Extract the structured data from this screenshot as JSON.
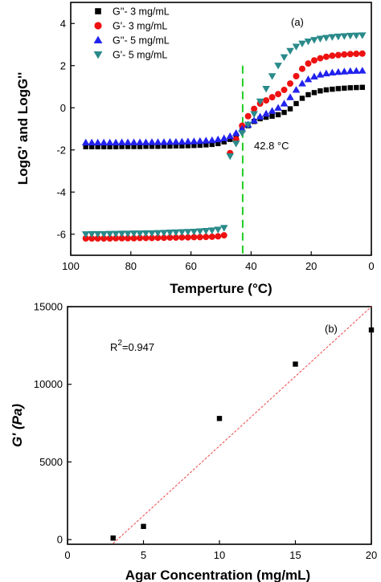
{
  "chart_data": [
    {
      "type": "scatter",
      "panel_label": "(a)",
      "xlabel": "Temperture (°C)",
      "ylabel": "LogG' and LogG''",
      "xlim": [
        100,
        0
      ],
      "ylim": [
        -7,
        5
      ],
      "xticks": [
        100,
        80,
        60,
        40,
        20,
        0
      ],
      "yticks": [
        -6,
        -4,
        -2,
        0,
        2,
        4
      ],
      "grid": false,
      "legend": "top-left",
      "annotation": {
        "text": "42.8 °C",
        "vline_x": 42.8,
        "vline_color": "#22cc22"
      },
      "series": [
        {
          "name": "G''- 3 mg/mL",
          "marker": "square",
          "color": "#000000",
          "x": [
            95,
            93,
            91,
            89,
            87,
            85,
            83,
            81,
            79,
            77,
            75,
            73,
            71,
            69,
            67,
            65,
            63,
            61,
            59,
            57,
            55,
            53,
            51,
            49,
            47,
            45,
            43,
            41,
            39,
            37,
            35,
            33,
            31,
            29,
            27,
            25,
            23,
            21,
            19,
            17,
            15,
            13,
            11,
            9,
            7,
            5,
            3
          ],
          "y": [
            -1.85,
            -1.85,
            -1.85,
            -1.85,
            -1.85,
            -1.85,
            -1.84,
            -1.84,
            -1.84,
            -1.84,
            -1.83,
            -1.83,
            -1.83,
            -1.82,
            -1.82,
            -1.81,
            -1.81,
            -1.8,
            -1.79,
            -1.78,
            -1.76,
            -1.74,
            -1.7,
            -1.62,
            -1.5,
            -1.32,
            -1.08,
            -0.85,
            -0.65,
            -0.52,
            -0.45,
            -0.4,
            -0.33,
            -0.22,
            -0.05,
            0.2,
            0.45,
            0.62,
            0.72,
            0.8,
            0.85,
            0.88,
            0.91,
            0.93,
            0.95,
            0.96,
            0.97
          ]
        },
        {
          "name": "G'- 3 mg/mL",
          "marker": "circle",
          "color": "#ee1111",
          "x": [
            95,
            93,
            91,
            89,
            87,
            85,
            83,
            81,
            79,
            77,
            75,
            73,
            71,
            69,
            67,
            65,
            63,
            61,
            59,
            57,
            55,
            53,
            51,
            49,
            47,
            45,
            43,
            41,
            39,
            37,
            35,
            33,
            31,
            29,
            27,
            25,
            23,
            21,
            19,
            17,
            15,
            13,
            11,
            9,
            7,
            5,
            3
          ],
          "y": [
            -6.2,
            -6.2,
            -6.2,
            -6.2,
            -6.2,
            -6.19,
            -6.19,
            -6.19,
            -6.19,
            -6.18,
            -6.18,
            -6.18,
            -6.17,
            -6.17,
            -6.16,
            -6.16,
            -6.15,
            -6.15,
            -6.14,
            -6.14,
            -6.13,
            -6.12,
            -6.1,
            -6.05,
            -2.15,
            -1.5,
            -0.85,
            -0.4,
            -0.05,
            0.2,
            0.35,
            0.5,
            0.65,
            0.85,
            1.15,
            1.5,
            1.85,
            2.1,
            2.25,
            2.35,
            2.42,
            2.47,
            2.5,
            2.53,
            2.55,
            2.56,
            2.57
          ]
        },
        {
          "name": "G''- 5 mg/mL",
          "marker": "triangle-up",
          "color": "#2222ee",
          "x": [
            95,
            93,
            91,
            89,
            87,
            85,
            83,
            81,
            79,
            77,
            75,
            73,
            71,
            69,
            67,
            65,
            63,
            61,
            59,
            57,
            55,
            53,
            51,
            49,
            47,
            45,
            43,
            41,
            39,
            37,
            35,
            33,
            31,
            29,
            27,
            25,
            23,
            21,
            19,
            17,
            15,
            13,
            11,
            9,
            7,
            5,
            3
          ],
          "y": [
            -1.65,
            -1.65,
            -1.65,
            -1.65,
            -1.65,
            -1.65,
            -1.64,
            -1.64,
            -1.64,
            -1.64,
            -1.64,
            -1.63,
            -1.63,
            -1.63,
            -1.62,
            -1.62,
            -1.61,
            -1.6,
            -1.59,
            -1.58,
            -1.56,
            -1.54,
            -1.5,
            -1.45,
            -1.35,
            -1.2,
            -1.0,
            -0.8,
            -0.6,
            -0.42,
            -0.28,
            -0.15,
            0.0,
            0.2,
            0.5,
            0.85,
            1.15,
            1.35,
            1.48,
            1.57,
            1.63,
            1.67,
            1.7,
            1.72,
            1.74,
            1.75,
            1.76
          ]
        },
        {
          "name": "G'- 5 mg/mL",
          "marker": "triangle-down",
          "color": "#2a8a8a",
          "x": [
            95,
            93,
            91,
            89,
            87,
            85,
            83,
            81,
            79,
            77,
            75,
            73,
            71,
            69,
            67,
            65,
            63,
            61,
            59,
            57,
            55,
            53,
            51,
            49,
            47,
            45,
            43,
            41,
            39,
            37,
            35,
            33,
            31,
            29,
            27,
            25,
            23,
            21,
            19,
            17,
            15,
            13,
            11,
            9,
            7,
            5,
            3
          ],
          "y": [
            -6.0,
            -5.99,
            -5.99,
            -5.99,
            -5.98,
            -5.98,
            -5.97,
            -5.97,
            -5.96,
            -5.96,
            -5.95,
            -5.95,
            -5.94,
            -5.93,
            -5.92,
            -5.91,
            -5.9,
            -5.89,
            -5.88,
            -5.86,
            -5.84,
            -5.82,
            -5.78,
            -5.7,
            -2.3,
            -1.7,
            -1.2,
            -0.8,
            -0.3,
            0.3,
            0.9,
            1.5,
            2.0,
            2.4,
            2.7,
            2.9,
            3.05,
            3.15,
            3.22,
            3.28,
            3.32,
            3.36,
            3.38,
            3.4,
            3.42,
            3.43,
            3.44
          ]
        }
      ]
    },
    {
      "type": "scatter",
      "panel_label": "(b)",
      "xlabel": "Agar Concentration (mg/mL)",
      "ylabel": "G' (Pa)",
      "xlim": [
        0,
        20
      ],
      "ylim": [
        -300,
        15000
      ],
      "xticks": [
        0,
        5,
        10,
        15,
        20
      ],
      "yticks": [
        0,
        5000,
        10000,
        15000
      ],
      "grid": false,
      "annotation": {
        "text_main": "R",
        "text_sup": "2",
        "text_rest": "=0.947"
      },
      "fit_line": {
        "x": [
          3,
          20
        ],
        "y": [
          -250,
          15000
        ],
        "color": "#ee4444",
        "style": "dashed"
      },
      "series": [
        {
          "marker": "square",
          "color": "#000000",
          "x": [
            3,
            5,
            10,
            15,
            20
          ],
          "y": [
            100,
            850,
            7800,
            11300,
            13500
          ]
        }
      ]
    }
  ]
}
